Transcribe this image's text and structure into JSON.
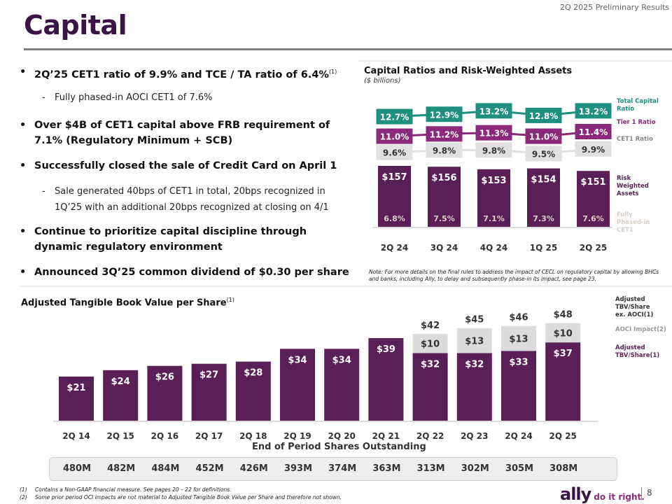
{
  "header": {
    "results_label": "2Q 2025 Preliminary Results",
    "title": "Capital"
  },
  "bullets": [
    {
      "text": "2Q’25 CET1 ratio of 9.9% and TCE / TA ratio of 6.4%",
      "sup": "(1)"
    },
    {
      "text": "Fully phased-in AOCI CET1 of 7.6%",
      "sub": true
    },
    {
      "text": "Over $4B of CET1 capital above FRB requirement of 7.1% (Regulatory Minimum + SCB)"
    },
    {
      "text": "Successfully closed the sale of Credit Card on April 1"
    },
    {
      "text": "Sale generated 40bps of CET1 in total, 20bps recognized in 1Q’25 with an additional 20bps recognized at closing on 4/1",
      "sub": true
    },
    {
      "text": "Continue to prioritize capital discipline through dynamic regulatory environment"
    },
    {
      "text": "Announced 3Q’25 common dividend of $0.30 per share"
    }
  ],
  "bullet_glyph": "•",
  "dash_glyph": "-",
  "chart_data": [
    {
      "type": "line",
      "title": "Capital Ratios and Risk-Weighted Assets",
      "subtitle": "($ billions)",
      "categories": [
        "2Q 24",
        "3Q 24",
        "4Q 24",
        "1Q 25",
        "2Q 25"
      ],
      "series": [
        {
          "name": "Total Capital Ratio",
          "values": [
            12.7,
            12.9,
            13.2,
            12.8,
            13.2
          ],
          "labels": [
            "12.7%",
            "12.9%",
            "13.2%",
            "12.8%",
            "13.2%"
          ],
          "color": "#1f8f80"
        },
        {
          "name": "Tier 1 Ratio",
          "values": [
            11.0,
            11.2,
            11.3,
            11.0,
            11.4
          ],
          "labels": [
            "11.0%",
            "11.2%",
            "11.3%",
            "11.0%",
            "11.4%"
          ],
          "color": "#8b2a7a"
        },
        {
          "name": "CET1 Ratio",
          "values": [
            9.6,
            9.8,
            9.8,
            9.5,
            9.9
          ],
          "labels": [
            "9.6%",
            "9.8%",
            "9.8%",
            "9.5%",
            "9.9%"
          ],
          "color": "#e0e0e0"
        }
      ],
      "legend": [
        "Total Capital Ratio",
        "Tier 1 Ratio",
        "CET1 Ratio"
      ],
      "legend_position": "right"
    },
    {
      "type": "bar",
      "categories": [
        "2Q 24",
        "3Q 24",
        "4Q 24",
        "1Q 25",
        "2Q 25"
      ],
      "series": [
        {
          "name": "Risk Weighted Assets",
          "values": [
            157,
            156,
            153,
            154,
            151
          ],
          "labels": [
            "$157",
            "$156",
            "$153",
            "$154",
            "$151"
          ],
          "color": "#5a1f57"
        },
        {
          "name": "Fully Phased-in CET1",
          "values": [
            6.8,
            7.5,
            7.1,
            7.3,
            7.6
          ],
          "labels": [
            "6.8%",
            "7.5%",
            "7.1%",
            "7.3%",
            "7.6%"
          ],
          "color": "#d8cfc8"
        }
      ],
      "legend": [
        "Risk Weighted Assets",
        "Fully Phased-in CET1"
      ],
      "legend_position": "right",
      "note": "Note: For more details on the final rules to address the impact of CECL on regulatory capital by allowing BHCs and banks, including Ally, to delay and subsequently phase-in its impact, see page 23."
    },
    {
      "type": "bar",
      "stacked": true,
      "title": "Adjusted Tangible Book Value per Share",
      "title_sup": "(1)",
      "categories": [
        "2Q 14",
        "2Q 15",
        "2Q 16",
        "2Q 17",
        "2Q 18",
        "2Q 19",
        "2Q 20",
        "2Q 21",
        "2Q 22",
        "2Q 23",
        "2Q 24",
        "2Q 25"
      ],
      "series": [
        {
          "name": "Adjusted TBV/Share",
          "sup": "(1)",
          "values": [
            21,
            24,
            26,
            27,
            28,
            34,
            34,
            39,
            32,
            32,
            33,
            37
          ],
          "color": "#5a1f57"
        },
        {
          "name": "AOCI Impact",
          "sup": "(2)",
          "values": [
            0,
            0,
            0,
            0,
            0,
            0,
            0,
            0,
            10,
            13,
            13,
            10
          ],
          "color": "#dcdcdc"
        }
      ],
      "totals": {
        "name": "Adjusted TBV/Share ex. AOCI",
        "sup": "(1)",
        "values": [
          null,
          null,
          null,
          null,
          null,
          null,
          null,
          null,
          42,
          45,
          46,
          48
        ]
      },
      "legend_position": "right",
      "xlabel": "End of Period Shares Outstanding",
      "shares_outstanding": [
        "480M",
        "482M",
        "484M",
        "452M",
        "426M",
        "393M",
        "374M",
        "363M",
        "313M",
        "302M",
        "305M",
        "308M"
      ]
    }
  ],
  "footnotes": [
    {
      "num": "(1)",
      "text": "Contains a Non-GAAP financial measure. See pages 20 – 22 for definitions."
    },
    {
      "num": "(2)",
      "text": "Some prior period OCI impacts are not material to Adjusted Tangible Book Value per Share and therefore not shown."
    }
  ],
  "footer": {
    "logo": "ally",
    "tagline": "do it right.",
    "page_number": "8"
  }
}
